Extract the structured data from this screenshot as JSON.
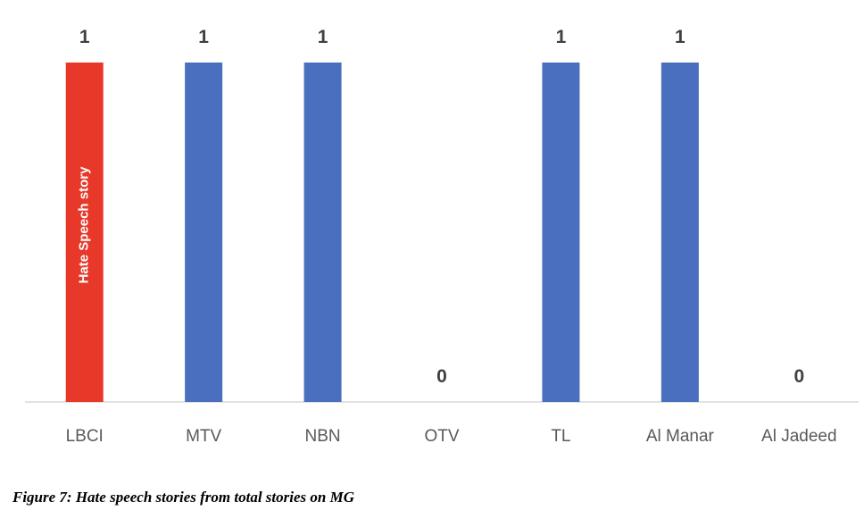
{
  "chart_data": {
    "type": "bar",
    "categories": [
      "LBCI",
      "MTV",
      "NBN",
      "OTV",
      "TL",
      "Al Manar",
      "Al Jadeed"
    ],
    "values": [
      1,
      1,
      1,
      0,
      1,
      1,
      0
    ],
    "bar_colors": [
      "#E8382A",
      "#4A6FBE",
      "#4A6FBE",
      "#4A6FBE",
      "#4A6FBE",
      "#4A6FBE",
      "#4A6FBE"
    ],
    "in_bar_labels": [
      "Hate Speech story",
      "",
      "",
      "",
      "",
      "",
      ""
    ],
    "ylim": [
      0,
      1
    ],
    "grid": false,
    "axis_color": "#D9D9D9"
  },
  "caption": "Figure 7: Hate speech stories from total stories on MG"
}
